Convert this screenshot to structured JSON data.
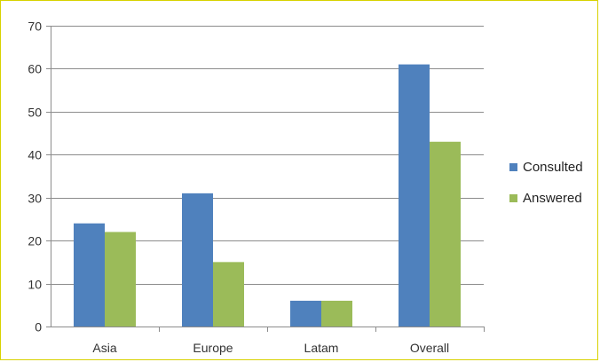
{
  "chart_data": {
    "type": "bar",
    "categories": [
      "Asia",
      "Europe",
      "Latam",
      "Overall"
    ],
    "series": [
      {
        "name": "Consulted",
        "values": [
          24,
          31,
          6,
          61
        ],
        "color": "#4F81BD"
      },
      {
        "name": "Answered",
        "values": [
          22,
          15,
          6,
          43
        ],
        "color": "#9BBB59"
      }
    ],
    "title": "",
    "xlabel": "",
    "ylabel": "",
    "ylim": [
      0,
      70
    ],
    "yticks": [
      0,
      10,
      20,
      30,
      40,
      50,
      60,
      70
    ],
    "grid": true,
    "legend_position": "right"
  },
  "colors": {
    "frame_border": "#d8d200",
    "gridline": "#8c8c8c",
    "axis": "#8c8c8c"
  }
}
